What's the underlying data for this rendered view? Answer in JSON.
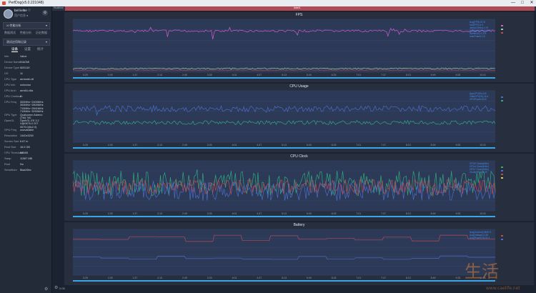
{
  "window": {
    "title": "PerfDog(v5.0.221048)",
    "minimize": "—",
    "maximize": "□",
    "close": "✕"
  },
  "user": {
    "name": "bel liel6e ♡",
    "sub": "用户信息 ♠",
    "settings_icon": "gear-icon"
  },
  "device_select": {
    "value": "Xi 性能分析",
    "icon": "chevron-down-icon"
  },
  "nav": [
    "数据测试",
    "性能分析",
    "历史数据"
  ],
  "app_select": {
    "value": "测试应用和记录",
    "icon": "chevron-down-icon"
  },
  "subtabs": [
    {
      "label": "设备",
      "active": true
    },
    {
      "label": "设置",
      "active": false
    },
    {
      "label": "统计",
      "active": false
    }
  ],
  "device_info": [
    {
      "k": "Info",
      "v": "Value"
    },
    {
      "k": "Device Name",
      "v": "XIAOMI"
    },
    {
      "k": "Device Type",
      "v": "M2011K"
    },
    {
      "k": "OS",
      "v": "11"
    },
    {
      "k": "CPU Type",
      "v": "armeabi-v8"
    },
    {
      "k": "CPU Info",
      "v": "unknown"
    },
    {
      "k": "CPU Arch",
      "v": "arm64-v8a"
    },
    {
      "k": "CPU Coreinum",
      "v": "8"
    },
    {
      "k": "CPU Freq",
      "v": "300MHz~2400MHz\n300MHz~2800MHz\n710MHz~2841MHz\n710MHz~3090MHz"
    },
    {
      "k": "GPU Type",
      "v": "Qualcomm Adreno\n(TM) 740"
    },
    {
      "k": "OpenGL",
      "v": "OpenGL ES 3.2\nV@0676.0 GIT\n0675.0(5c2.0)"
    },
    {
      "k": "GPU Freq",
      "v": "unavailable"
    },
    {
      "k": "Resolution",
      "v": "1440x3200"
    },
    {
      "k": "Screen Size",
      "v": "6.67 in"
    },
    {
      "k": "Root Size",
      "v": "16.0 GB"
    },
    {
      "k": "CPU Threshold",
      "v": "6/6MB"
    },
    {
      "k": "Swap",
      "v": "11987 MB"
    },
    {
      "k": "Root",
      "v": "No"
    },
    {
      "k": "SerialNum",
      "v": "f8aa26bc"
    }
  ],
  "top_strip": {
    "label": "Realtime",
    "marker": "label1"
  },
  "panels": [
    {
      "title": "FPS",
      "legend": [
        "Avg(FPS):57.8",
        "Var(FPS):4.9",
        "Jank(/10min):1.07",
        "BigJank(/10min):0.0",
        "Stutter(%):0.2%",
        "InterFrame:2.8"
      ],
      "series_colors": [
        "#d25bd6",
        "#8fd0a6",
        "#b94a54"
      ],
      "x_labels": [
        "0:25",
        "1:05",
        "1:37",
        "2:13",
        "2:49",
        "3:25",
        "4:01",
        "4:37",
        "5:13",
        "5:49",
        "6:25",
        "7:01",
        "7:37",
        "8:13",
        "8:49",
        "9:25",
        "10:01"
      ]
    },
    {
      "title": "CPU Usage",
      "legend": [
        "AppCPU(%):3.8",
        "TotalCPU(%):16.4",
        "CPUPower:63.6"
      ],
      "series_colors": [
        "#4a6cc8",
        "#2fa87c"
      ],
      "x_labels": [
        "0:25",
        "1:05",
        "1:37",
        "2:13",
        "2:49",
        "3:25",
        "4:01",
        "4:37",
        "5:13",
        "5:49",
        "6:25",
        "7:01",
        "7:37",
        "8:13",
        "8:49",
        "9:25",
        "10:01"
      ]
    },
    {
      "title": "CPU Clock",
      "legend": [
        "CPU0 Clock(MHz)",
        "CPU4 Clock(MHz)",
        "CPU7 Clock(MHz)",
        "Clock(MHz):1.39"
      ],
      "series_colors": [
        "#2fa87c",
        "#4a6cc8",
        "#b94a54",
        "#d9c65f"
      ],
      "x_labels": [
        "0:25",
        "1:05",
        "1:37",
        "2:13",
        "2:49",
        "3:25",
        "4:01",
        "4:37",
        "5:13",
        "5:49",
        "6:25",
        "7:01",
        "7:37",
        "8:13",
        "8:49",
        "9:25",
        "10:01"
      ]
    },
    {
      "title": "Battery",
      "legend": [
        "Avg(Current):2400.3",
        "Avg(Voltage):4.30",
        "Avg(Power):5132.4"
      ],
      "series_colors": [
        "#b94a54",
        "#4a6cc8"
      ],
      "x_labels": [
        "0:25",
        "1:05",
        "1:37",
        "2:13",
        "2:49",
        "3:25",
        "4:01",
        "4:37",
        "5:13",
        "5:49",
        "6:25",
        "7:01",
        "7:37",
        "8:13",
        "8:49",
        "9:25",
        "10:01"
      ]
    }
  ],
  "footer": {
    "time_label": "0:05",
    "settings_icon": "gear-icon"
  },
  "watermark": {
    "text": "生活",
    "sub": "www.caelife.net"
  }
}
